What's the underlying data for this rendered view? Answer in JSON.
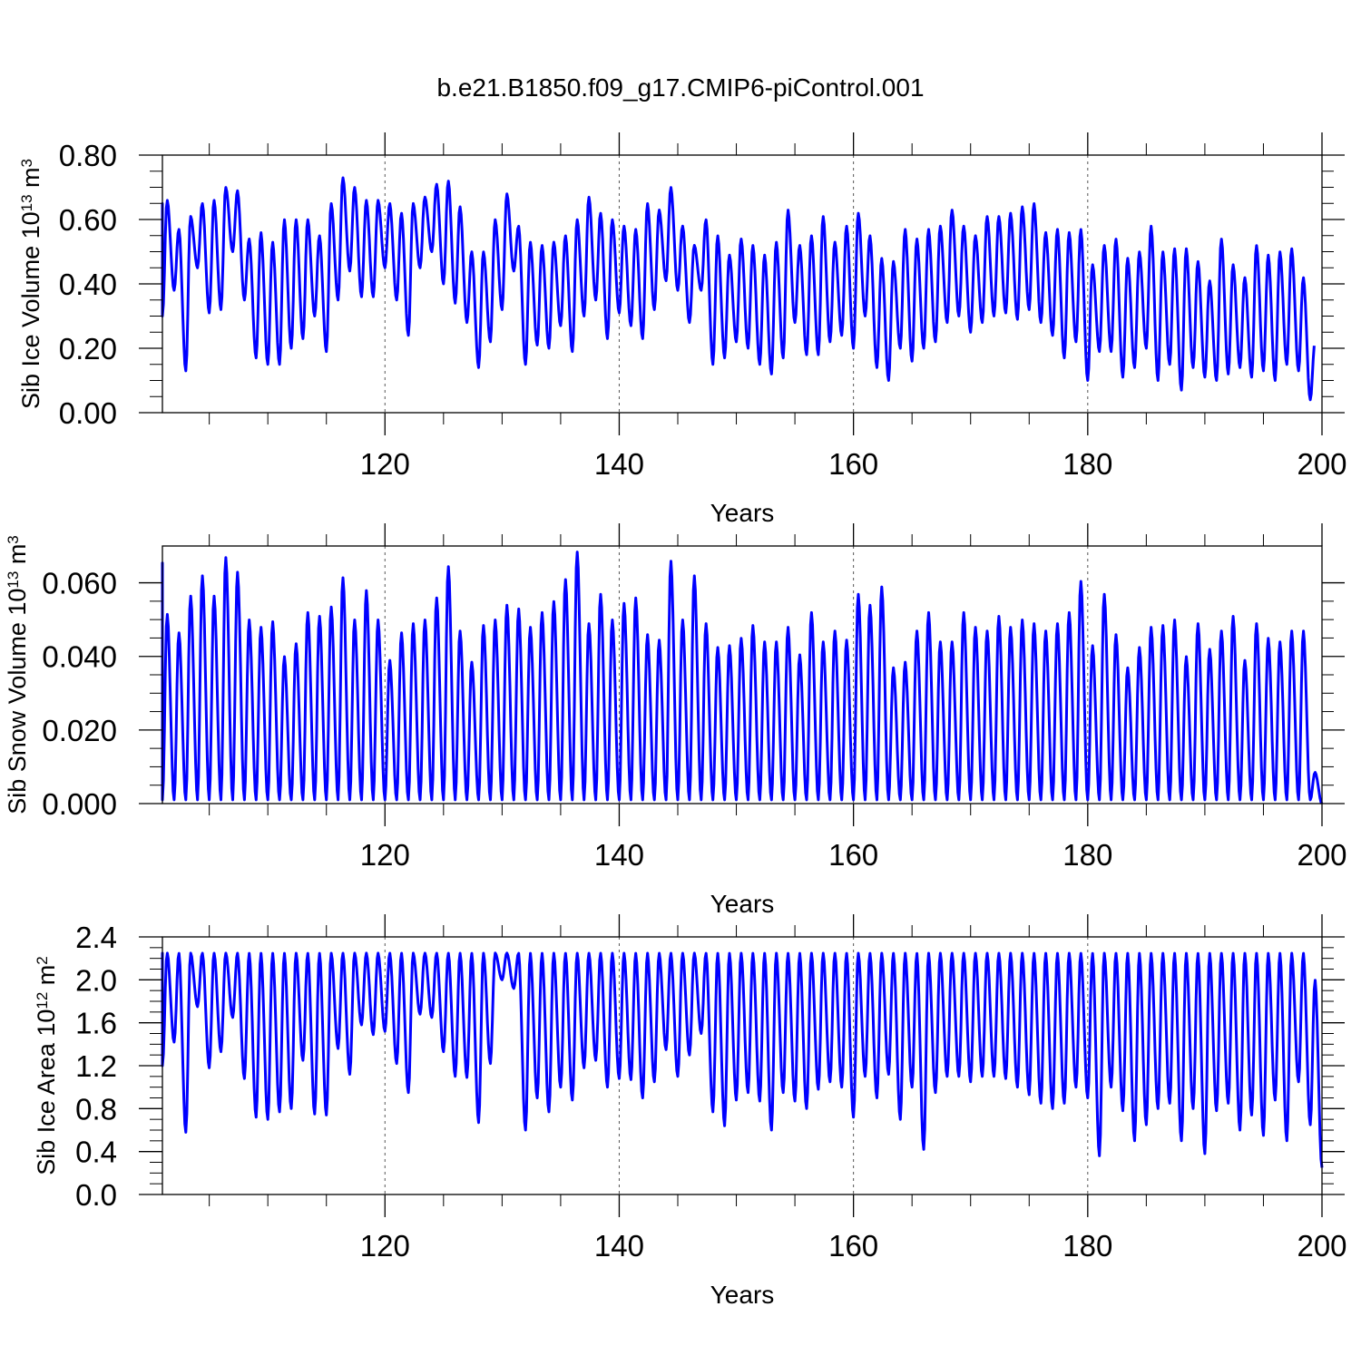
{
  "figure_title": "b.e21.B1850.f09_g17.CMIP6-piControl.001",
  "colors": {
    "line": "#0000ff",
    "axis": "#000000",
    "grid": "#555555"
  },
  "chart_data": [
    {
      "type": "line",
      "ylabel": "Sib Ice Volume 10",
      "ylabel_exp": "13",
      "ylabel_unit": " m",
      "ylabel_unit_exp": "3",
      "xlabel": "Years",
      "xlim": [
        101,
        200
      ],
      "ylim": [
        0,
        0.8
      ],
      "x_ticks": [
        120,
        140,
        160,
        180,
        200
      ],
      "x_tick_labels": [
        "120",
        "140",
        "160",
        "180",
        "200"
      ],
      "y_ticks": [
        0,
        0.2,
        0.4,
        0.6,
        0.8
      ],
      "y_tick_labels": [
        "0.00",
        "0.20",
        "0.40",
        "0.60",
        "0.80"
      ],
      "grid": "dashed vertical at x ticks",
      "series": [
        {
          "sampling": "yearly max/min",
          "x": [
            101,
            102,
            103,
            104,
            105,
            106,
            107,
            108,
            109,
            110,
            111,
            112,
            113,
            114,
            115,
            116,
            117,
            118,
            119,
            120,
            121,
            122,
            123,
            124,
            125,
            126,
            127,
            128,
            129,
            130,
            131,
            132,
            133,
            134,
            135,
            136,
            137,
            138,
            139,
            140,
            141,
            142,
            143,
            144,
            145,
            146,
            147,
            148,
            149,
            150,
            151,
            152,
            153,
            154,
            155,
            156,
            157,
            158,
            159,
            160,
            161,
            162,
            163,
            164,
            165,
            166,
            167,
            168,
            169,
            170,
            171,
            172,
            173,
            174,
            175,
            176,
            177,
            178,
            179,
            180,
            181,
            182,
            183,
            184,
            185,
            186,
            187,
            188,
            189,
            190,
            191,
            192,
            193,
            194,
            195,
            196,
            197,
            198,
            199,
            200
          ],
          "max": [
            0.65,
            0.66,
            0.57,
            0.61,
            0.65,
            0.66,
            0.7,
            0.69,
            0.54,
            0.56,
            0.53,
            0.6,
            0.6,
            0.6,
            0.55,
            0.65,
            0.73,
            0.7,
            0.66,
            0.66,
            0.65,
            0.62,
            0.65,
            0.67,
            0.71,
            0.72,
            0.64,
            0.5,
            0.5,
            0.6,
            0.68,
            0.58,
            0.53,
            0.52,
            0.53,
            0.55,
            0.6,
            0.67,
            0.62,
            0.6,
            0.58,
            0.57,
            0.65,
            0.63,
            0.7,
            0.58,
            0.52,
            0.6,
            0.55,
            0.49,
            0.54,
            0.52,
            0.49,
            0.53,
            0.63,
            0.52,
            0.55,
            0.61,
            0.53,
            0.58,
            0.62,
            0.55,
            0.48,
            0.47,
            0.57,
            0.54,
            0.57,
            0.58,
            0.63,
            0.58,
            0.55,
            0.61,
            0.61,
            0.62,
            0.64,
            0.65,
            0.56,
            0.57,
            0.56,
            0.57,
            0.46,
            0.52,
            0.54,
            0.48,
            0.5,
            0.58,
            0.5,
            0.51,
            0.51,
            0.47,
            0.41,
            0.54,
            0.46,
            0.42,
            0.52,
            0.49,
            0.5,
            0.51,
            0.42,
            0.22
          ],
          "min": [
            0.3,
            0.38,
            0.13,
            0.45,
            0.31,
            0.32,
            0.5,
            0.35,
            0.17,
            0.15,
            0.15,
            0.2,
            0.23,
            0.3,
            0.19,
            0.35,
            0.44,
            0.36,
            0.36,
            0.45,
            0.35,
            0.24,
            0.45,
            0.5,
            0.4,
            0.34,
            0.28,
            0.14,
            0.22,
            0.32,
            0.44,
            0.15,
            0.21,
            0.2,
            0.27,
            0.19,
            0.3,
            0.35,
            0.23,
            0.31,
            0.27,
            0.23,
            0.32,
            0.41,
            0.38,
            0.28,
            0.38,
            0.15,
            0.17,
            0.22,
            0.2,
            0.15,
            0.12,
            0.17,
            0.28,
            0.18,
            0.18,
            0.22,
            0.24,
            0.2,
            0.3,
            0.14,
            0.1,
            0.2,
            0.16,
            0.2,
            0.22,
            0.28,
            0.3,
            0.25,
            0.28,
            0.3,
            0.31,
            0.29,
            0.32,
            0.28,
            0.24,
            0.17,
            0.22,
            0.1,
            0.19,
            0.19,
            0.11,
            0.14,
            0.2,
            0.1,
            0.15,
            0.07,
            0.14,
            0.11,
            0.1,
            0.12,
            0.14,
            0.11,
            0.13,
            0.1,
            0.15,
            0.13,
            0.04
          ]
        }
      ]
    },
    {
      "type": "line",
      "ylabel": "Sib Snow Volume 10",
      "ylabel_exp": "13",
      "ylabel_unit": " m",
      "ylabel_unit_exp": "3",
      "xlabel": "Years",
      "xlim": [
        101,
        200
      ],
      "ylim": [
        0,
        0.07
      ],
      "x_ticks": [
        120,
        140,
        160,
        180,
        200
      ],
      "x_tick_labels": [
        "120",
        "140",
        "160",
        "180",
        "200"
      ],
      "y_ticks": [
        0,
        0.02,
        0.04,
        0.06
      ],
      "y_tick_labels": [
        "0.000",
        "0.020",
        "0.040",
        "0.060"
      ],
      "grid": "dashed vertical at x ticks",
      "series": [
        {
          "sampling": "yearly max/min",
          "x": [
            101,
            102,
            103,
            104,
            105,
            106,
            107,
            108,
            109,
            110,
            111,
            112,
            113,
            114,
            115,
            116,
            117,
            118,
            119,
            120,
            121,
            122,
            123,
            124,
            125,
            126,
            127,
            128,
            129,
            130,
            131,
            132,
            133,
            134,
            135,
            136,
            137,
            138,
            139,
            140,
            141,
            142,
            143,
            144,
            145,
            146,
            147,
            148,
            149,
            150,
            151,
            152,
            153,
            154,
            155,
            156,
            157,
            158,
            159,
            160,
            161,
            162,
            163,
            164,
            165,
            166,
            167,
            168,
            169,
            170,
            171,
            172,
            173,
            174,
            175,
            176,
            177,
            178,
            179,
            180,
            181,
            182,
            183,
            184,
            185,
            186,
            187,
            188,
            189,
            190,
            191,
            192,
            193,
            194,
            195,
            196,
            197,
            198,
            199,
            200
          ],
          "max": [
            0.0655,
            0.0515,
            0.0465,
            0.0565,
            0.062,
            0.0565,
            0.067,
            0.063,
            0.05,
            0.048,
            0.0495,
            0.04,
            0.0435,
            0.052,
            0.051,
            0.0535,
            0.0615,
            0.05,
            0.058,
            0.05,
            0.039,
            0.0465,
            0.049,
            0.05,
            0.056,
            0.0645,
            0.047,
            0.0385,
            0.0485,
            0.05,
            0.054,
            0.053,
            0.048,
            0.052,
            0.055,
            0.061,
            0.0685,
            0.049,
            0.057,
            0.05,
            0.0545,
            0.056,
            0.046,
            0.0445,
            0.066,
            0.05,
            0.062,
            0.049,
            0.0425,
            0.043,
            0.045,
            0.0485,
            0.044,
            0.044,
            0.048,
            0.0405,
            0.052,
            0.044,
            0.047,
            0.0445,
            0.057,
            0.054,
            0.059,
            0.037,
            0.0385,
            0.047,
            0.052,
            0.044,
            0.044,
            0.052,
            0.048,
            0.047,
            0.051,
            0.048,
            0.05,
            0.049,
            0.047,
            0.049,
            0.052,
            0.0605,
            0.043,
            0.057,
            0.046,
            0.037,
            0.0425,
            0.048,
            0.0485,
            0.05,
            0.04,
            0.049,
            0.042,
            0.047,
            0.051,
            0.039,
            0.049,
            0.045,
            0.044,
            0.047,
            0.047,
            0.0085
          ],
          "min": [
            0.001,
            0.001,
            0.001,
            0.001,
            0.001,
            0.001,
            0.001,
            0.001,
            0.001,
            0.001,
            0.001,
            0.001,
            0.001,
            0.001,
            0.001,
            0.001,
            0.001,
            0.001,
            0.001,
            0.001,
            0.001,
            0.001,
            0.001,
            0.001,
            0.001,
            0.001,
            0.001,
            0.001,
            0.001,
            0.001,
            0.001,
            0.001,
            0.001,
            0.001,
            0.001,
            0.001,
            0.001,
            0.001,
            0.001,
            0.001,
            0.001,
            0.001,
            0.001,
            0.001,
            0.001,
            0.001,
            0.001,
            0.001,
            0.001,
            0.001,
            0.001,
            0.001,
            0.001,
            0.001,
            0.001,
            0.001,
            0.001,
            0.001,
            0.001,
            0.001,
            0.001,
            0.001,
            0.001,
            0.001,
            0.001,
            0.001,
            0.001,
            0.001,
            0.001,
            0.001,
            0.001,
            0.001,
            0.001,
            0.001,
            0.001,
            0.001,
            0.001,
            0.001,
            0.001,
            0.001,
            0.001,
            0.001,
            0.001,
            0.001,
            0.001,
            0.001,
            0.001,
            0.001,
            0.001,
            0.001,
            0.001,
            0.001,
            0.001,
            0.001,
            0.001,
            0.001,
            0.001,
            0.001,
            0.001,
            0.0
          ]
        }
      ]
    },
    {
      "type": "line",
      "ylabel": "Sib Ice Area 10",
      "ylabel_exp": "12",
      "ylabel_unit": " m",
      "ylabel_unit_exp": "2",
      "xlabel": "Years",
      "xlim": [
        101,
        200
      ],
      "ylim": [
        0,
        2.4
      ],
      "x_ticks": [
        120,
        140,
        160,
        180,
        200
      ],
      "x_tick_labels": [
        "120",
        "140",
        "160",
        "180",
        "200"
      ],
      "y_ticks": [
        0,
        0.4,
        0.8,
        1.2,
        1.6,
        2.0,
        2.4
      ],
      "y_tick_labels": [
        "0.0",
        "0.4",
        "0.8",
        "1.2",
        "1.6",
        "2.0",
        "2.4"
      ],
      "grid": "dashed vertical at x ticks",
      "series": [
        {
          "sampling": "yearly max/min",
          "x": [
            101,
            102,
            103,
            104,
            105,
            106,
            107,
            108,
            109,
            110,
            111,
            112,
            113,
            114,
            115,
            116,
            117,
            118,
            119,
            120,
            121,
            122,
            123,
            124,
            125,
            126,
            127,
            128,
            129,
            130,
            131,
            132,
            133,
            134,
            135,
            136,
            137,
            138,
            139,
            140,
            141,
            142,
            143,
            144,
            145,
            146,
            147,
            148,
            149,
            150,
            151,
            152,
            153,
            154,
            155,
            156,
            157,
            158,
            159,
            160,
            161,
            162,
            163,
            164,
            165,
            166,
            167,
            168,
            169,
            170,
            171,
            172,
            173,
            174,
            175,
            176,
            177,
            178,
            179,
            180,
            181,
            182,
            183,
            184,
            185,
            186,
            187,
            188,
            189,
            190,
            191,
            192,
            193,
            194,
            195,
            196,
            197,
            198,
            199,
            200
          ],
          "max": [
            2.25,
            2.25,
            2.25,
            2.25,
            2.25,
            2.25,
            2.25,
            2.25,
            2.25,
            2.25,
            2.25,
            2.25,
            2.25,
            2.25,
            2.25,
            2.25,
            2.25,
            2.25,
            2.25,
            2.25,
            2.25,
            2.25,
            2.25,
            2.25,
            2.25,
            2.25,
            2.25,
            2.25,
            2.25,
            2.25,
            2.25,
            2.25,
            2.25,
            2.25,
            2.25,
            2.25,
            2.25,
            2.25,
            2.25,
            2.25,
            2.25,
            2.25,
            2.25,
            2.25,
            2.25,
            2.25,
            2.25,
            2.25,
            2.25,
            2.25,
            2.25,
            2.25,
            2.25,
            2.25,
            2.25,
            2.25,
            2.25,
            2.25,
            2.25,
            2.25,
            2.25,
            2.25,
            2.25,
            2.25,
            2.25,
            2.25,
            2.25,
            2.25,
            2.25,
            2.25,
            2.25,
            2.25,
            2.25,
            2.25,
            2.25,
            2.25,
            2.25,
            2.25,
            2.25,
            2.25,
            2.25,
            2.25,
            2.25,
            2.25,
            2.25,
            2.25,
            2.25,
            2.25,
            2.25,
            2.25,
            2.25,
            2.25,
            2.25,
            2.25,
            2.25,
            2.25,
            2.25,
            2.25,
            2.25,
            2.0
          ],
          "min": [
            1.2,
            1.42,
            0.58,
            1.75,
            1.18,
            1.33,
            1.65,
            1.08,
            0.72,
            0.7,
            0.77,
            0.8,
            1.25,
            0.75,
            0.74,
            1.36,
            1.12,
            1.58,
            1.49,
            1.52,
            1.22,
            0.95,
            1.68,
            1.65,
            1.33,
            1.1,
            1.09,
            0.67,
            1.22,
            2.0,
            1.92,
            0.6,
            0.9,
            0.77,
            1.0,
            0.88,
            1.18,
            1.25,
            1.0,
            1.08,
            1.07,
            0.9,
            1.05,
            1.35,
            1.1,
            1.3,
            1.5,
            0.77,
            0.64,
            0.88,
            0.95,
            0.87,
            0.6,
            0.95,
            0.87,
            0.8,
            0.98,
            1.05,
            1.0,
            0.72,
            1.1,
            0.9,
            1.12,
            0.7,
            1.0,
            0.42,
            0.95,
            1.1,
            1.1,
            1.05,
            1.1,
            1.1,
            1.08,
            1.0,
            0.93,
            0.85,
            0.8,
            0.85,
            1.0,
            0.9,
            0.36,
            1.0,
            0.78,
            0.5,
            0.65,
            0.8,
            0.85,
            0.5,
            0.8,
            0.38,
            0.78,
            0.85,
            0.6,
            0.74,
            0.55,
            0.88,
            0.5,
            1.05,
            0.65,
            0.25
          ]
        }
      ]
    }
  ]
}
